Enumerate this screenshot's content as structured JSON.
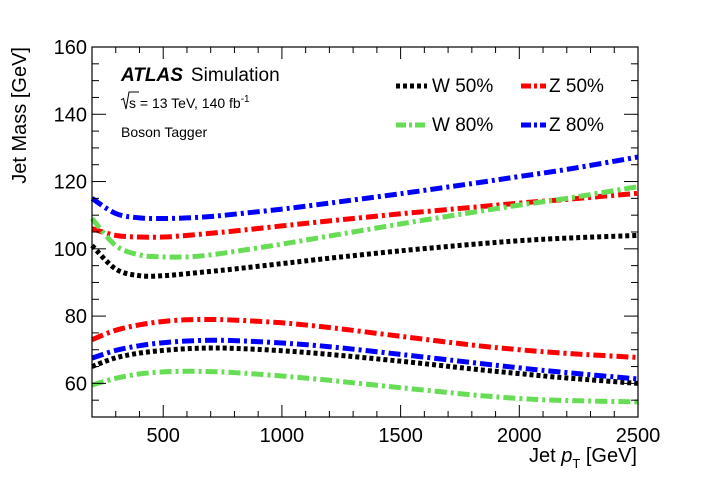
{
  "chart_data": {
    "type": "line",
    "title": "",
    "xlabel": "Jet p_T [GeV]",
    "xlabel_parts": {
      "main": "Jet ",
      "symbol": "p",
      "sub": "T",
      "unit": " [GeV]"
    },
    "ylabel": "Jet Mass [GeV]",
    "xlim": [
      200,
      2500
    ],
    "ylim": [
      50,
      160
    ],
    "x_ticks": [
      500,
      1000,
      1500,
      2000,
      2500
    ],
    "y_ticks": [
      60,
      80,
      100,
      120,
      140,
      160
    ],
    "x_tick_labels": [
      "500",
      "1000",
      "1500",
      "2000",
      "2500"
    ],
    "y_tick_labels": [
      "60",
      "80",
      "100",
      "120",
      "140",
      "160"
    ],
    "annotations": {
      "experiment": "ATLAS",
      "status": "Simulation",
      "energy_sqrt": "s",
      "energy_text": " = 13 TeV, 140 fb",
      "energy_sup": "-1",
      "tagger": "Boson Tagger"
    },
    "legend": [
      {
        "name": "W 50%",
        "color": "#000000",
        "style": "dotted"
      },
      {
        "name": "Z 50%",
        "color": "#ff0000",
        "style": "dashdot"
      },
      {
        "name": "W 80%",
        "color": "#66dd55",
        "style": "dashdot"
      },
      {
        "name": "Z 80%",
        "color": "#0000ff",
        "style": "dashdot"
      }
    ],
    "x": [
      200,
      300,
      400,
      500,
      600,
      700,
      800,
      1000,
      1200,
      1500,
      1800,
      2000,
      2200,
      2500
    ],
    "series": [
      {
        "name": "W 50% upper",
        "group": "W 50%",
        "color": "#000000",
        "style": "dotted",
        "values": [
          101,
          94,
          92,
          92,
          92.6,
          93.3,
          94,
          95.6,
          97.2,
          99.4,
          101.3,
          102.4,
          103.2,
          104
        ]
      },
      {
        "name": "W 50% lower",
        "group": "W 50%",
        "color": "#000000",
        "style": "dotted",
        "values": [
          65,
          67.6,
          69,
          69.8,
          70.3,
          70.5,
          70.4,
          69.7,
          68.6,
          66.6,
          64.3,
          62.9,
          61.6,
          60
        ]
      },
      {
        "name": "Z 50% upper",
        "group": "Z 50%",
        "color": "#ff0000",
        "style": "dashdot",
        "values": [
          106,
          104,
          103.5,
          103.5,
          104,
          104.6,
          105.3,
          106.8,
          108.3,
          110.4,
          112.3,
          113.6,
          114.7,
          116.5
        ]
      },
      {
        "name": "Z 50% lower",
        "group": "Z 50%",
        "color": "#ff0000",
        "style": "dashdot",
        "values": [
          73,
          75.8,
          77.4,
          78.4,
          78.9,
          79,
          78.8,
          78,
          76.6,
          74,
          71.4,
          70,
          68.9,
          67.7
        ]
      },
      {
        "name": "W 80% upper",
        "group": "W 80%",
        "color": "#66dd55",
        "style": "dashdot",
        "values": [
          109,
          101,
          98.2,
          97.6,
          97.6,
          98.2,
          99.2,
          101.4,
          103.8,
          107.4,
          110.8,
          113,
          115,
          118.5
        ]
      },
      {
        "name": "W 80% lower",
        "group": "W 80%",
        "color": "#66dd55",
        "style": "dashdot",
        "values": [
          59.5,
          61.5,
          62.8,
          63.4,
          63.6,
          63.5,
          63.2,
          62.2,
          60.9,
          58.7,
          56.6,
          55.5,
          54.9,
          54.5
        ]
      },
      {
        "name": "Z 80% upper",
        "group": "Z 80%",
        "color": "#0000ff",
        "style": "dashdot",
        "values": [
          115,
          110.5,
          109.2,
          109,
          109.2,
          109.6,
          110.3,
          111.8,
          113.6,
          116.4,
          119.4,
          121.5,
          123.6,
          127.3
        ]
      },
      {
        "name": "Z 80% lower",
        "group": "Z 80%",
        "color": "#0000ff",
        "style": "dashdot",
        "values": [
          67.5,
          69.8,
          71.2,
          72.1,
          72.6,
          72.8,
          72.7,
          72,
          70.9,
          68.6,
          66.2,
          64.6,
          63.2,
          61.3
        ]
      }
    ]
  }
}
